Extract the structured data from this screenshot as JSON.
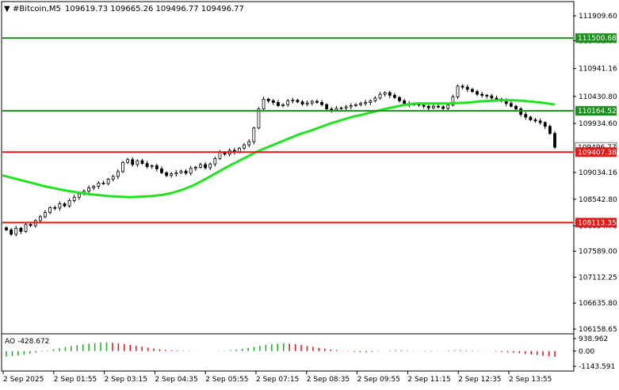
{
  "header": {
    "arrow": "▼",
    "symbol": "#Bitcoin,M5",
    "ohlc": "109619.73 109665.26 109496.77 109496.77"
  },
  "price_axis": {
    "ticks": [
      "111909.60",
      "111452.80",
      "110941.16",
      "110430.80",
      "109934.60",
      "109034.16",
      "108542.80",
      "108054.76",
      "107589.00",
      "107112.25",
      "106635.80",
      "106158.65"
    ],
    "min": 106158.65,
    "max": 111909.6
  },
  "levels": [
    {
      "name": "level-111500",
      "price": 111500.68,
      "label": "111500.68",
      "color": "#1f8f1f"
    },
    {
      "name": "level-110164",
      "price": 110164.52,
      "label": "110164.52",
      "color": "#1f8f1f"
    },
    {
      "name": "level-109407",
      "price": 109407.38,
      "label": "109407.38",
      "color": "#e01818"
    },
    {
      "name": "level-108113",
      "price": 108113.35,
      "label": "108113.35",
      "color": "#e01818"
    }
  ],
  "current_price_tag": "109496.77",
  "time_axis": [
    "2 Sep 2025",
    "2 Sep 01:55",
    "2 Sep 03:15",
    "2 Sep 04:35",
    "2 Sep 05:55",
    "2 Sep 07:15",
    "2 Sep 08:35",
    "2 Sep 09:55",
    "2 Sep 11:15",
    "2 Sep 12:35",
    "2 Sep 13:55"
  ],
  "ao": {
    "label": "AO -428.672",
    "ticks": [
      "938.962",
      "0.00",
      "-1143.591"
    ],
    "max": 938.962,
    "min": -1143.591
  },
  "colors": {
    "ma": "#22e222",
    "candle": "#000000",
    "ao_up": "#1fa81f",
    "ao_down": "#d01818"
  },
  "chart_data": {
    "type": "candlestick",
    "title": "#Bitcoin,M5",
    "ylim": [
      106158.65,
      111909.6
    ],
    "candles_close": [
      107980,
      107900,
      108010,
      107950,
      108080,
      108060,
      108150,
      108220,
      108300,
      108390,
      108380,
      108460,
      108420,
      108520,
      108580,
      108640,
      108690,
      108750,
      108780,
      108840,
      108830,
      108910,
      108960,
      109050,
      109220,
      109270,
      109180,
      109250,
      109200,
      109140,
      109160,
      109100,
      109030,
      108980,
      109010,
      109030,
      109060,
      109020,
      109110,
      109130,
      109180,
      109120,
      109190,
      109290,
      109400,
      109370,
      109440,
      109410,
      109480,
      109540,
      109600,
      109850,
      110200,
      110380,
      110350,
      110320,
      110260,
      110280,
      110350,
      110360,
      110330,
      110290,
      110310,
      110340,
      110320,
      110280,
      110200,
      110180,
      110210,
      110220,
      110240,
      110260,
      110280,
      110300,
      110320,
      110350,
      110400,
      110470,
      110500,
      110450,
      110410,
      110350,
      110300,
      110280,
      110290,
      110270,
      110250,
      110220,
      110250,
      110240,
      110210,
      110270,
      110420,
      110620,
      110600,
      110560,
      110520,
      110470,
      110450,
      110440,
      110400,
      110380,
      110360,
      110300,
      110250,
      110200,
      110100,
      110050,
      110000,
      109980,
      109950,
      109880,
      109750,
      109496.77
    ],
    "ma_values": [
      108980,
      108930,
      108880,
      108830,
      108780,
      108740,
      108700,
      108670,
      108640,
      108620,
      108600,
      108590,
      108580,
      108590,
      108600,
      108620,
      108660,
      108720,
      108800,
      108900,
      109010,
      109120,
      109220,
      109320,
      109420,
      109500,
      109580,
      109660,
      109740,
      109800,
      109870,
      109940,
      110000,
      110060,
      110100,
      110150,
      110200,
      110240,
      110280,
      110300,
      110300,
      110300,
      110300,
      110310,
      110320,
      110340,
      110350,
      110360,
      110360,
      110350,
      110330,
      110310,
      110280
    ],
    "ao_values": [
      -420,
      -380,
      -330,
      -270,
      -200,
      -120,
      -40,
      40,
      130,
      220,
      300,
      380,
      440,
      500,
      560,
      600,
      630,
      640,
      620,
      580,
      530,
      470,
      400,
      330,
      260,
      200,
      140,
      90,
      60,
      40,
      30,
      20,
      10,
      5,
      0,
      10,
      20,
      30,
      60,
      110,
      170,
      240,
      320,
      400,
      470,
      520,
      560,
      580,
      560,
      520,
      460,
      390,
      320,
      250,
      180,
      120,
      70,
      20,
      -30,
      -60,
      -80,
      -90,
      -70,
      -40,
      10,
      40,
      60,
      50,
      30,
      10,
      -10,
      -30,
      -40,
      -20,
      10,
      40,
      60,
      50,
      40,
      30,
      20,
      10,
      -10,
      -40,
      -70,
      -100,
      -130,
      -170,
      -210,
      -250,
      -300,
      -350,
      -390,
      -428.672
    ]
  }
}
